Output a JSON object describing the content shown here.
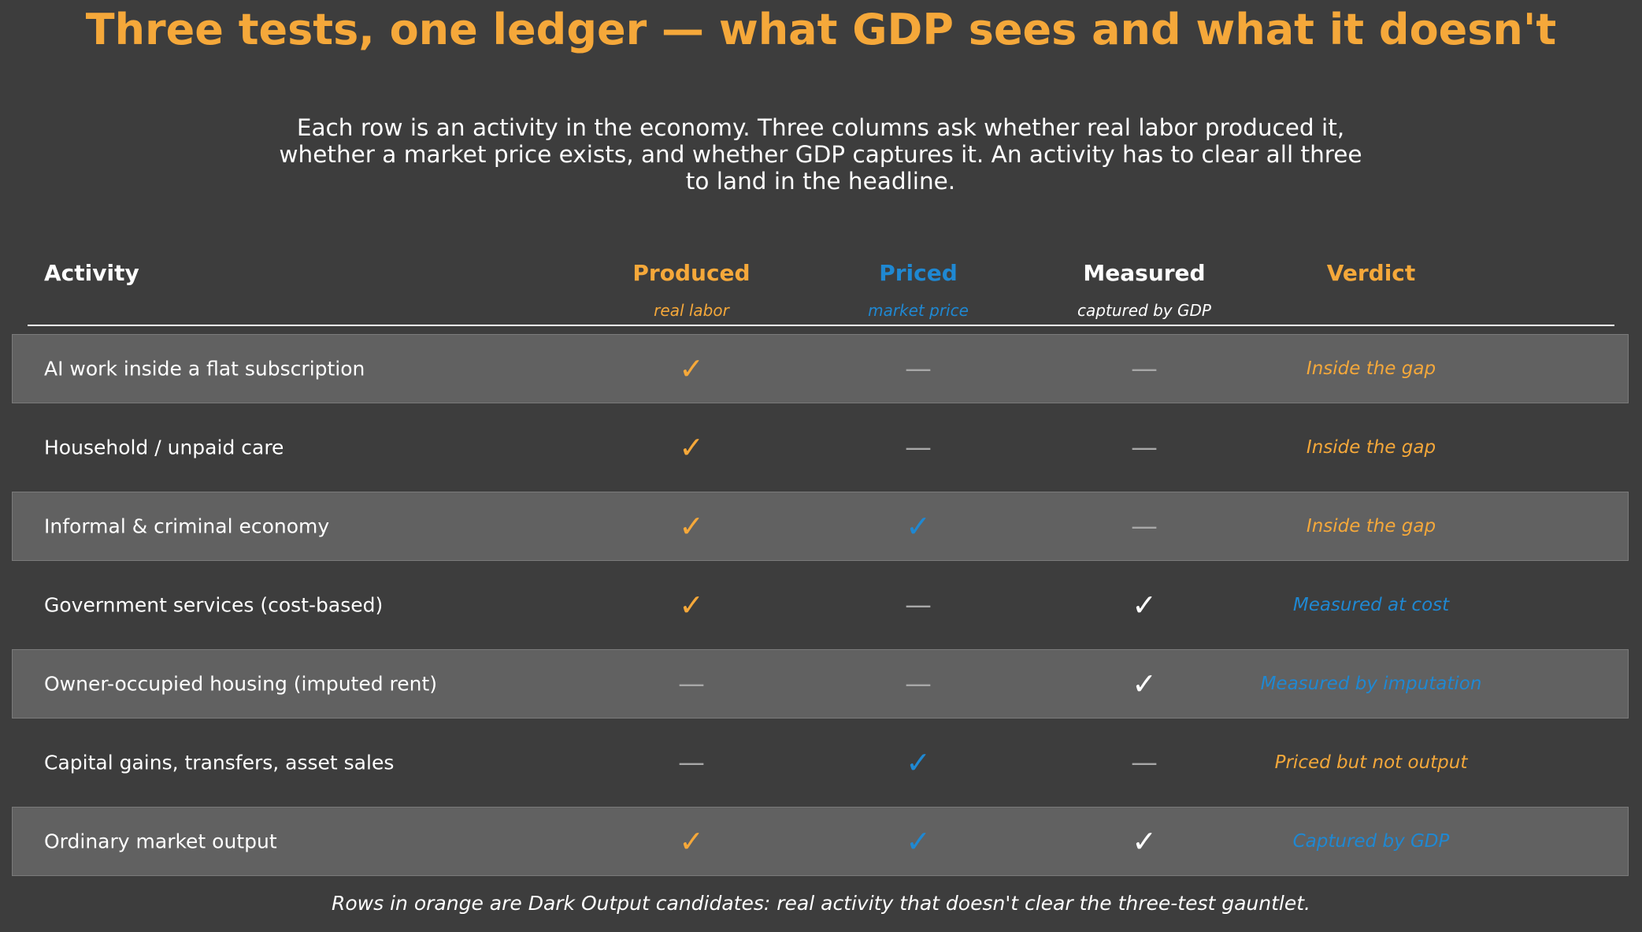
{
  "chart_data": {
    "type": "table",
    "title": "Three tests, one ledger — what GDP sees and what it doesn't",
    "subtitle": "Each row is an activity in the economy. Three columns ask whether real labor produced it, whether a market price exists, and whether GDP captures it. An activity has to clear all three to land in the headline.",
    "footer": "Rows in orange are Dark Output candidates: real activity that doesn't clear the three-test gauntlet.",
    "check_symbol": "✓",
    "dash_symbol": "—",
    "columns": [
      {
        "key": "activity",
        "label": "Activity",
        "sublabel": "",
        "color": "#ffffff"
      },
      {
        "key": "produced",
        "label": "Produced",
        "sublabel": "real labor",
        "color": "#f5a83a"
      },
      {
        "key": "priced",
        "label": "Priced",
        "sublabel": "market price",
        "color": "#1f88d2"
      },
      {
        "key": "measured",
        "label": "Measured",
        "sublabel": "captured by GDP",
        "color": "#ffffff"
      },
      {
        "key": "verdict",
        "label": "Verdict",
        "sublabel": "",
        "color": "#f5a83a"
      }
    ],
    "rows": [
      {
        "activity": "AI work inside a flat subscription",
        "produced": true,
        "priced": false,
        "measured": false,
        "verdict": "Inside the gap",
        "verdict_color": "#f5a83a"
      },
      {
        "activity": "Household / unpaid care",
        "produced": true,
        "priced": false,
        "measured": false,
        "verdict": "Inside the gap",
        "verdict_color": "#f5a83a"
      },
      {
        "activity": "Informal & criminal economy",
        "produced": true,
        "priced": true,
        "measured": false,
        "verdict": "Inside the gap",
        "verdict_color": "#f5a83a"
      },
      {
        "activity": "Government services (cost-based)",
        "produced": true,
        "priced": false,
        "measured": true,
        "verdict": "Measured at cost",
        "verdict_color": "#1f88d2"
      },
      {
        "activity": "Owner-occupied housing (imputed rent)",
        "produced": false,
        "priced": false,
        "measured": true,
        "verdict": "Measured by imputation",
        "verdict_color": "#1f88d2"
      },
      {
        "activity": "Capital gains, transfers, asset sales",
        "produced": false,
        "priced": true,
        "measured": false,
        "verdict": "Priced but not output",
        "verdict_color": "#f5a83a"
      },
      {
        "activity": "Ordinary market output",
        "produced": true,
        "priced": true,
        "measured": true,
        "verdict": "Captured by GDP",
        "verdict_color": "#1f88d2"
      }
    ],
    "band_rows": [
      0,
      2,
      4,
      6
    ],
    "colors": {
      "background": "#3d3d3d",
      "band": "#616161",
      "dash": "#a8a8a8",
      "title": "#f5a83a"
    }
  }
}
